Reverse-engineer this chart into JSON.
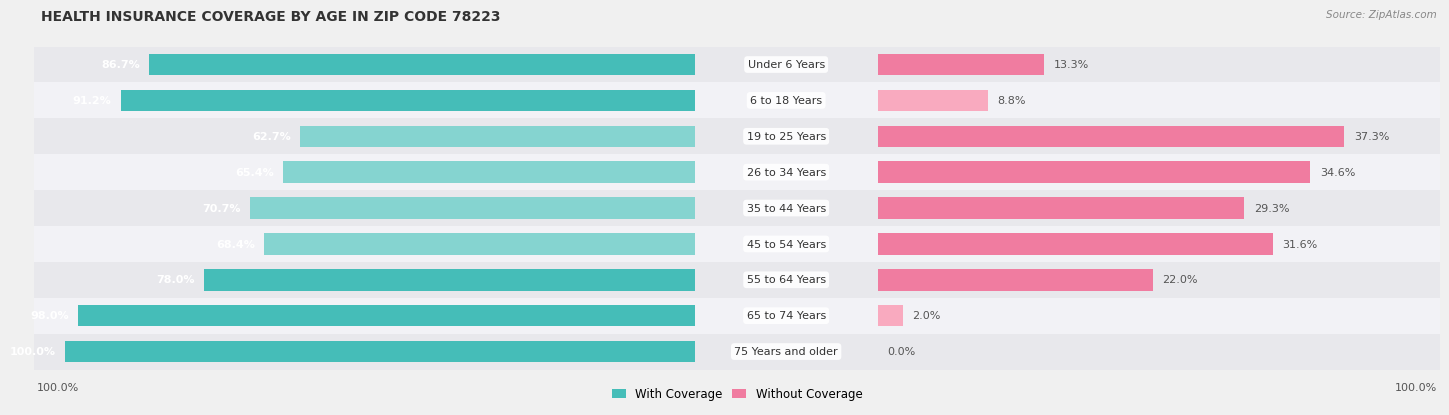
{
  "title": "HEALTH INSURANCE COVERAGE BY AGE IN ZIP CODE 78223",
  "source": "Source: ZipAtlas.com",
  "categories": [
    "Under 6 Years",
    "6 to 18 Years",
    "19 to 25 Years",
    "26 to 34 Years",
    "35 to 44 Years",
    "45 to 54 Years",
    "55 to 64 Years",
    "65 to 74 Years",
    "75 Years and older"
  ],
  "with_coverage": [
    86.7,
    91.2,
    62.7,
    65.4,
    70.7,
    68.4,
    78.0,
    98.0,
    100.0
  ],
  "without_coverage": [
    13.3,
    8.8,
    37.3,
    34.6,
    29.3,
    31.6,
    22.0,
    2.0,
    0.0
  ],
  "color_with": "#45BDB8",
  "color_without": "#F07CA0",
  "color_with_light": "#85D4D0",
  "color_without_light": "#F9AABF",
  "bg_light": "#F0F0F0",
  "row_colors": [
    "#E8E8EC",
    "#F2F2F6"
  ],
  "title_fontsize": 10,
  "label_fontsize": 8,
  "pct_fontsize": 8,
  "legend_fontsize": 8.5,
  "source_fontsize": 7.5,
  "bar_height": 0.6,
  "xlim_left": 105,
  "xlim_right": 45
}
